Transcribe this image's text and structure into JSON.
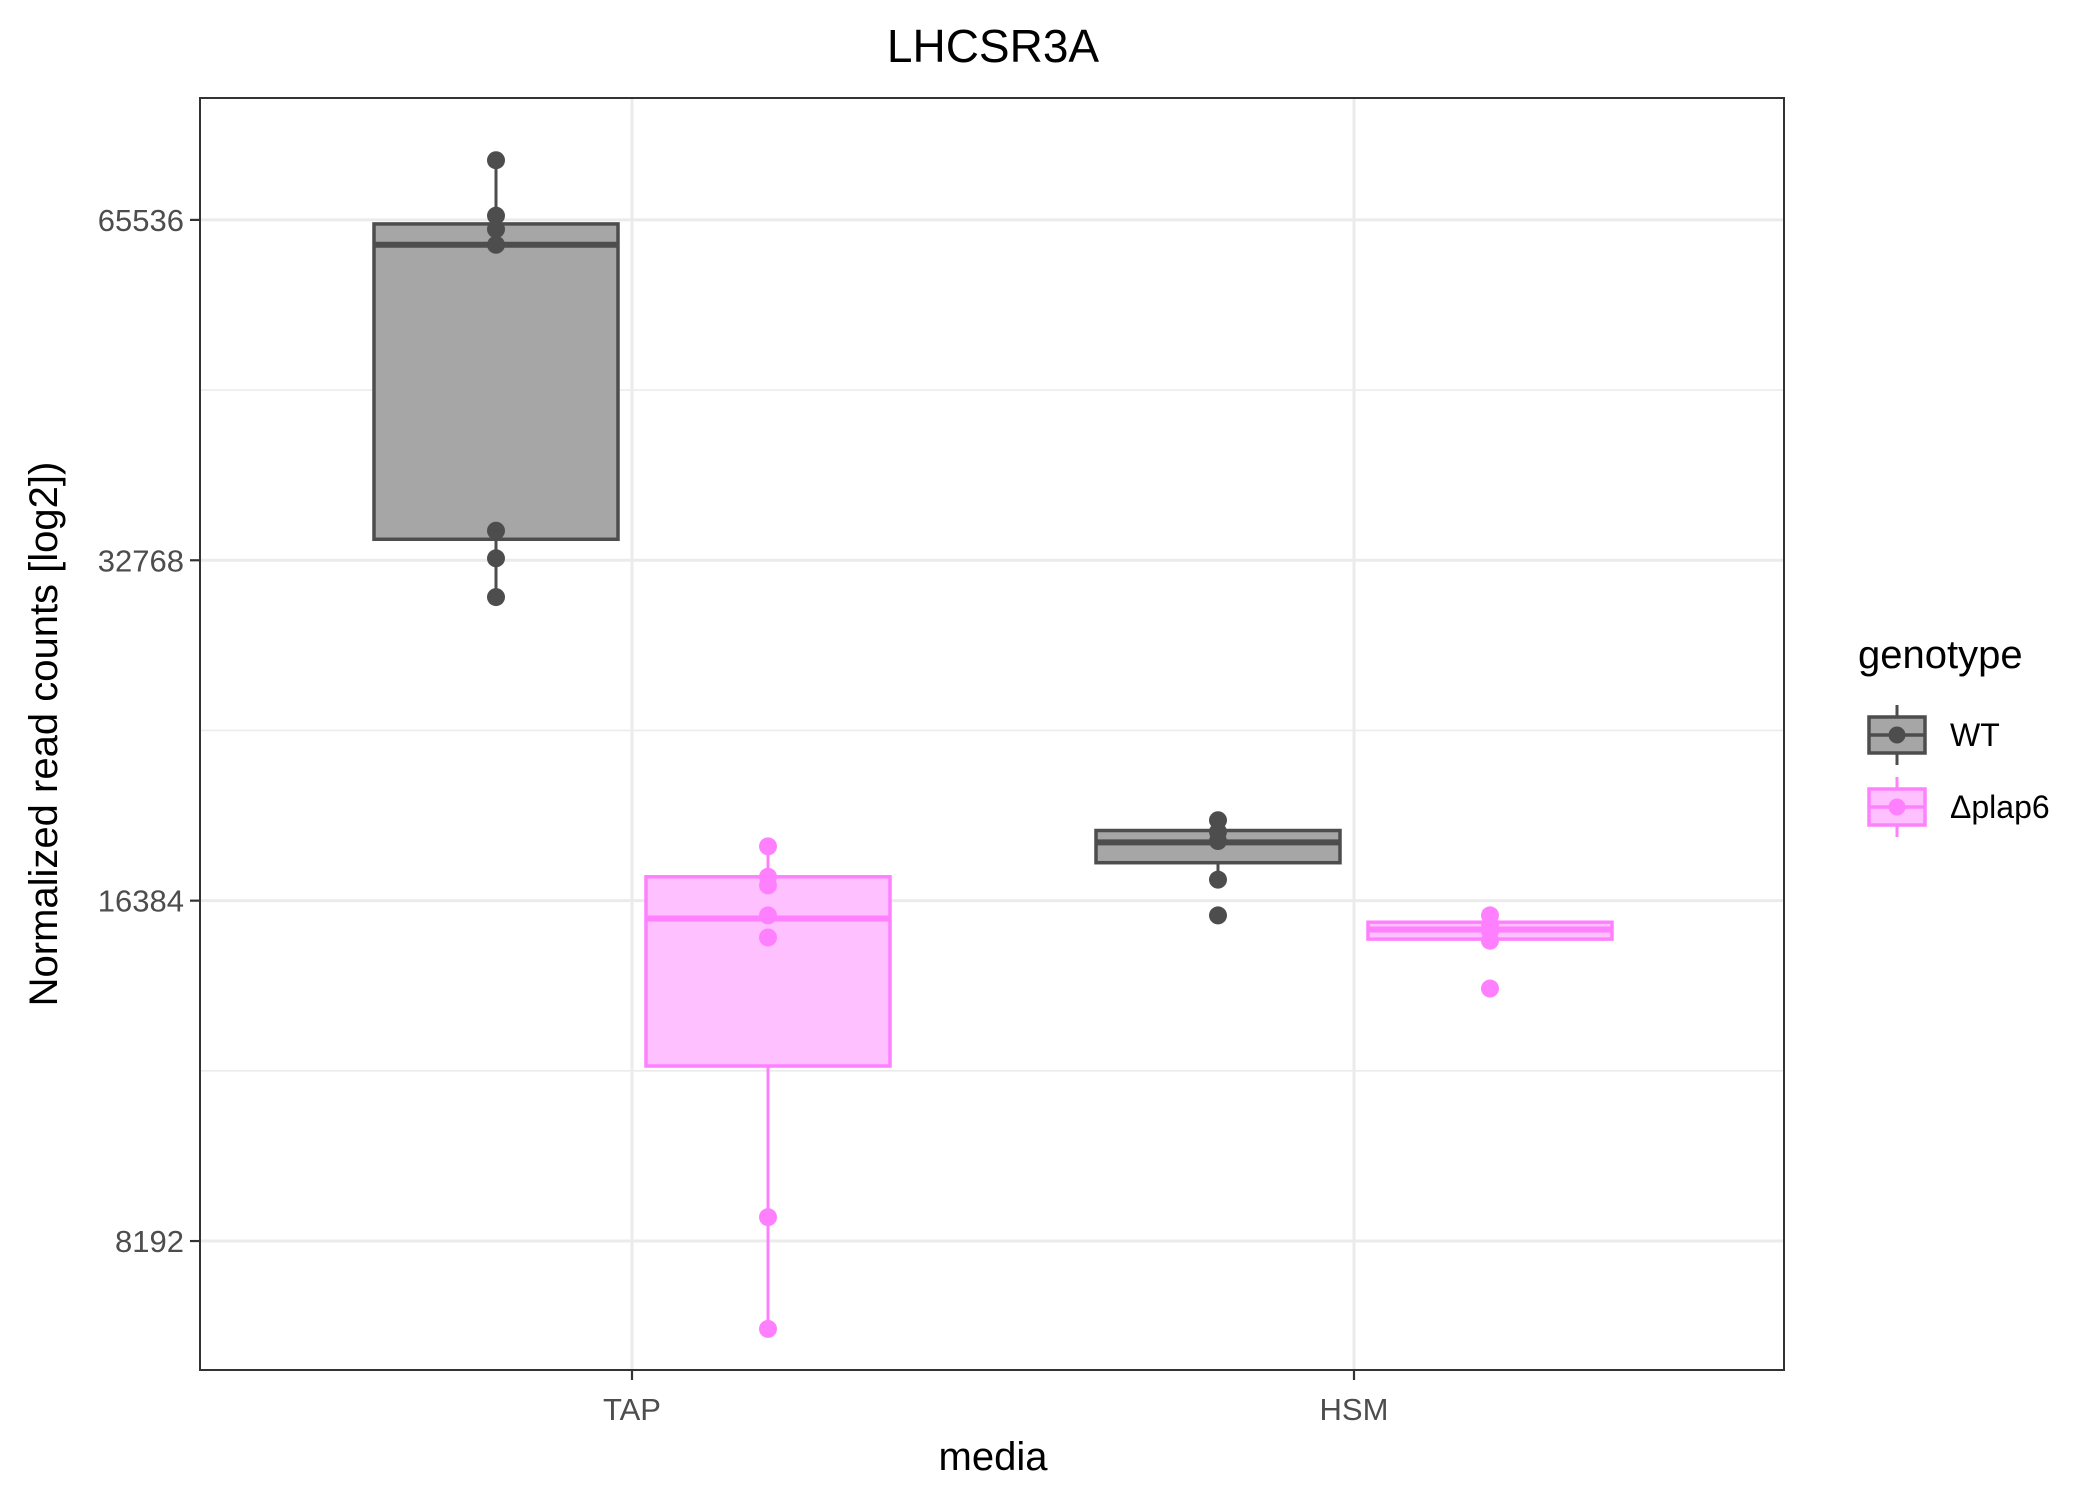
{
  "chart_data": {
    "type": "box",
    "title": "LHCSR3A",
    "xlabel": "media",
    "ylabel": "Normalized read counts [log2])",
    "y_scale": "log2",
    "ylim": [
      6300,
      84000
    ],
    "y_ticks": [
      8192,
      16384,
      32768,
      65536
    ],
    "y_tick_labels": [
      "8192",
      "16384",
      "32768",
      "65536"
    ],
    "categories": [
      "TAP",
      "HSM"
    ],
    "grid": true,
    "legend": {
      "title": "genotype",
      "position": "right"
    },
    "series": [
      {
        "name": "WT",
        "color": "#4d4d4d",
        "fill": "#a6a6a6",
        "boxes": [
          {
            "category": "TAP",
            "q1": 34200,
            "median": 62300,
            "q3": 65000,
            "whisker_low": 30400,
            "whisker_high": 74000,
            "points": [
              74000,
              66100,
              64300,
              62300,
              34800,
              32900,
              30400
            ]
          },
          {
            "category": "HSM",
            "q1": 17700,
            "median": 18450,
            "q3": 18900,
            "whisker_low": 17000,
            "whisker_high": 19300,
            "points": [
              19300,
              18850,
              18500,
              17100,
              15900
            ]
          }
        ]
      },
      {
        "name": "Δplap6",
        "color": "#ff80ff",
        "fill": "#ffc0ff",
        "boxes": [
          {
            "category": "TAP",
            "q1": 11700,
            "median": 15800,
            "q3": 17200,
            "whisker_low": 6850,
            "whisker_high": 18300,
            "points": [
              18300,
              17200,
              16900,
              15900,
              15200,
              8600,
              6850
            ]
          },
          {
            "category": "HSM",
            "q1": 15150,
            "median": 15450,
            "q3": 15680,
            "whisker_low": 15000,
            "whisker_high": 15900,
            "points": [
              15900,
              15600,
              15400,
              15100,
              13700
            ]
          }
        ]
      }
    ]
  }
}
